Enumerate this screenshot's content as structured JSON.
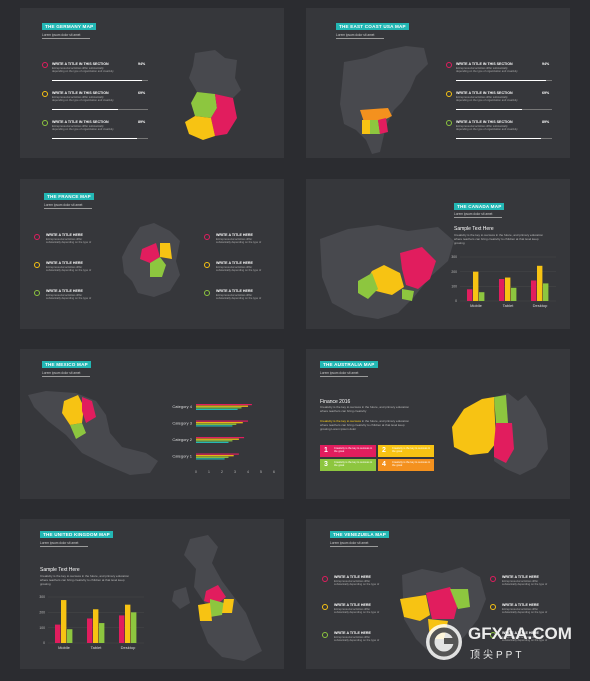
{
  "colors": {
    "teal": "#23b7b4",
    "red": "#e11d5e",
    "yellow": "#f7c313",
    "green": "#8dc63f",
    "orange": "#f4911e",
    "dark": "#36373b",
    "map": "#48494e"
  },
  "slides": {
    "germany": {
      "title": "THE GERMANY MAP",
      "subtitle": "Lorem ipsum dolor sit amet",
      "items": [
        {
          "title": "WRITE A TITLE IN THIS SECTION",
          "desc": "Entrepreneurial activities differ substantially depending on the type of organization and creativity",
          "pct": "94%",
          "value": 94
        },
        {
          "title": "WRITE A TITLE IN THIS SECTION",
          "desc": "Entrepreneurial activities differ substantially depending on the type of organization and creativity",
          "pct": "69%",
          "value": 69
        },
        {
          "title": "WRITE A TITLE IN THIS SECTION",
          "desc": "Entrepreneurial activities differ substantially depending on the type of organization and creativity",
          "pct": "89%",
          "value": 89
        }
      ]
    },
    "eastcoast": {
      "title": "THE EAST COAST USA MAP",
      "subtitle": "Lorem ipsum dolor sit amet",
      "items": [
        {
          "title": "WRITE A TITLE IN THIS SECTION",
          "desc": "Entrepreneurial activities differ substantially depending on the type of organization and creativity",
          "pct": "94%",
          "value": 94
        },
        {
          "title": "WRITE A TITLE IN THIS SECTION",
          "desc": "Entrepreneurial activities differ substantially depending on the type of organization and creativity",
          "pct": "69%",
          "value": 69
        },
        {
          "title": "WRITE A TITLE IN THIS SECTION",
          "desc": "Entrepreneurial activities differ substantially depending on the type of organization and creativity",
          "pct": "89%",
          "value": 89
        }
      ]
    },
    "france": {
      "title": "THE FRANCE MAP",
      "subtitle": "Lorem ipsum dolor sit amet",
      "left": [
        {
          "title": "WRITE A TITLE HERE",
          "desc": "Entrepreneurial activities differ substantially depending on the type of"
        },
        {
          "title": "WRITE A TITLE HERE",
          "desc": "Entrepreneurial activities differ substantially depending on the type of"
        },
        {
          "title": "WRITE A TITLE HERE",
          "desc": "Entrepreneurial activities differ substantially depending on the type of"
        }
      ],
      "right": [
        {
          "title": "WRITE A TITLE HERE",
          "desc": "Entrepreneurial activities differ substantially depending on the type of"
        },
        {
          "title": "WRITE A TITLE HERE",
          "desc": "Entrepreneurial activities differ substantially depending on the type of"
        },
        {
          "title": "WRITE A TITLE HERE",
          "desc": "Entrepreneurial activities differ substantially depending on the type of"
        }
      ]
    },
    "canada": {
      "title": "THE CANADA MAP",
      "subtitle": "Lorem ipsum dolor sit amet",
      "heading": "Sample Text Here",
      "paragraph": "Creativity is the key to success in the future, and primary education where teachers can bring creativity to children at that level keep growing"
    },
    "mexico": {
      "title": "THE MEXICO MAP",
      "subtitle": "Lorem ipsum dolor sit amet"
    },
    "australia": {
      "title": "THE AUSTRALIA MAP",
      "subtitle": "Lorem ipsum dolor sit amet",
      "heading": "Finance 2016",
      "paragraph1": "Creativity is the key to success in the future, and primary education where teachers can bring creativity",
      "paragraph2_highlight": "Creativity is the key to success",
      "paragraph2": " in the future, and primary education where teachers can bring creativity to children at that level keep growing Lorem ipsum dolor",
      "boxes": [
        {
          "num": "1",
          "text": "Creativity is the key to success in the great"
        },
        {
          "num": "2",
          "text": "Creativity is the key to success in the great"
        },
        {
          "num": "3",
          "text": "Creativity is the key to success in the great"
        },
        {
          "num": "4",
          "text": "Creativity is the key to success in the great"
        }
      ]
    },
    "uk": {
      "title": "THE UNITED KINGDOM MAP",
      "subtitle": "Lorem ipsum dolor sit amet",
      "heading": "Sample Text Here",
      "paragraph": "Creativity is the key to success in the future, and primary education where teachers can bring creativity to children at that level keep growing"
    },
    "venezuela": {
      "title": "THE VENEZUELA MAP",
      "subtitle": "Lorem ipsum dolor sit amet",
      "left": [
        {
          "title": "WRITE A TITLE HERE",
          "desc": "Entrepreneurial activities differ substantially depending on the type of"
        },
        {
          "title": "WRITE A TITLE HERE",
          "desc": "Entrepreneurial activities differ substantially depending on the type of"
        },
        {
          "title": "WRITE A TITLE HERE",
          "desc": "Entrepreneurial activities differ substantially depending on the type of"
        }
      ],
      "right": [
        {
          "title": "WRITE A TITLE HERE",
          "desc": "Entrepreneurial activities differ substantially depending on the type of"
        },
        {
          "title": "WRITE A TITLE HERE",
          "desc": "Entrepreneurial activities differ substantially depending on the type of"
        },
        {
          "title": "WRITE A TITLE HERE",
          "desc": "Entrepreneurial activities differ substantially depending on the type of"
        }
      ]
    }
  },
  "chart_data": [
    {
      "type": "bar",
      "id": "canada-chart",
      "categories": [
        "Mobile",
        "Tablet",
        "Desktop"
      ],
      "series": [
        {
          "values": [
            80,
            150,
            140
          ],
          "color": "#e11d5e"
        },
        {
          "values": [
            200,
            160,
            240
          ],
          "color": "#f7c313"
        },
        {
          "values": [
            60,
            90,
            120
          ],
          "color": "#8dc63f"
        }
      ],
      "ylim": [
        0,
        300
      ],
      "yticks": [
        "300",
        "200",
        "100",
        "0"
      ]
    },
    {
      "type": "bar",
      "id": "mexico-chart",
      "orientation": "horizontal",
      "categories": [
        "Category 4",
        "Category 3",
        "Category 2",
        "Category 1"
      ],
      "series": [
        {
          "values": [
            4.3,
            4.0,
            3.7,
            3.3
          ],
          "color": "#e11d5e"
        },
        {
          "values": [
            4.0,
            3.6,
            3.3,
            2.9
          ],
          "color": "#f7c313"
        },
        {
          "values": [
            3.5,
            3.1,
            2.8,
            2.5
          ],
          "color": "#8dc63f"
        },
        {
          "values": [
            3.2,
            2.8,
            2.5,
            2.2
          ],
          "color": "#23b7b4"
        }
      ],
      "xlim": [
        0,
        6
      ],
      "xticks": [
        "0",
        "1",
        "2",
        "3",
        "4",
        "5",
        "6"
      ]
    },
    {
      "type": "bar",
      "id": "uk-chart",
      "categories": [
        "Mobile",
        "Tablet",
        "Desktop"
      ],
      "series": [
        {
          "values": [
            120,
            160,
            180
          ],
          "color": "#e11d5e"
        },
        {
          "values": [
            280,
            220,
            250
          ],
          "color": "#f7c313"
        },
        {
          "values": [
            90,
            130,
            200
          ],
          "color": "#8dc63f"
        }
      ],
      "ylim": [
        0,
        300
      ],
      "yticks": [
        "300",
        "200",
        "100",
        "0"
      ]
    }
  ],
  "watermark": {
    "brand": "GFXAA.COM",
    "tag": "顶尖PPT"
  }
}
